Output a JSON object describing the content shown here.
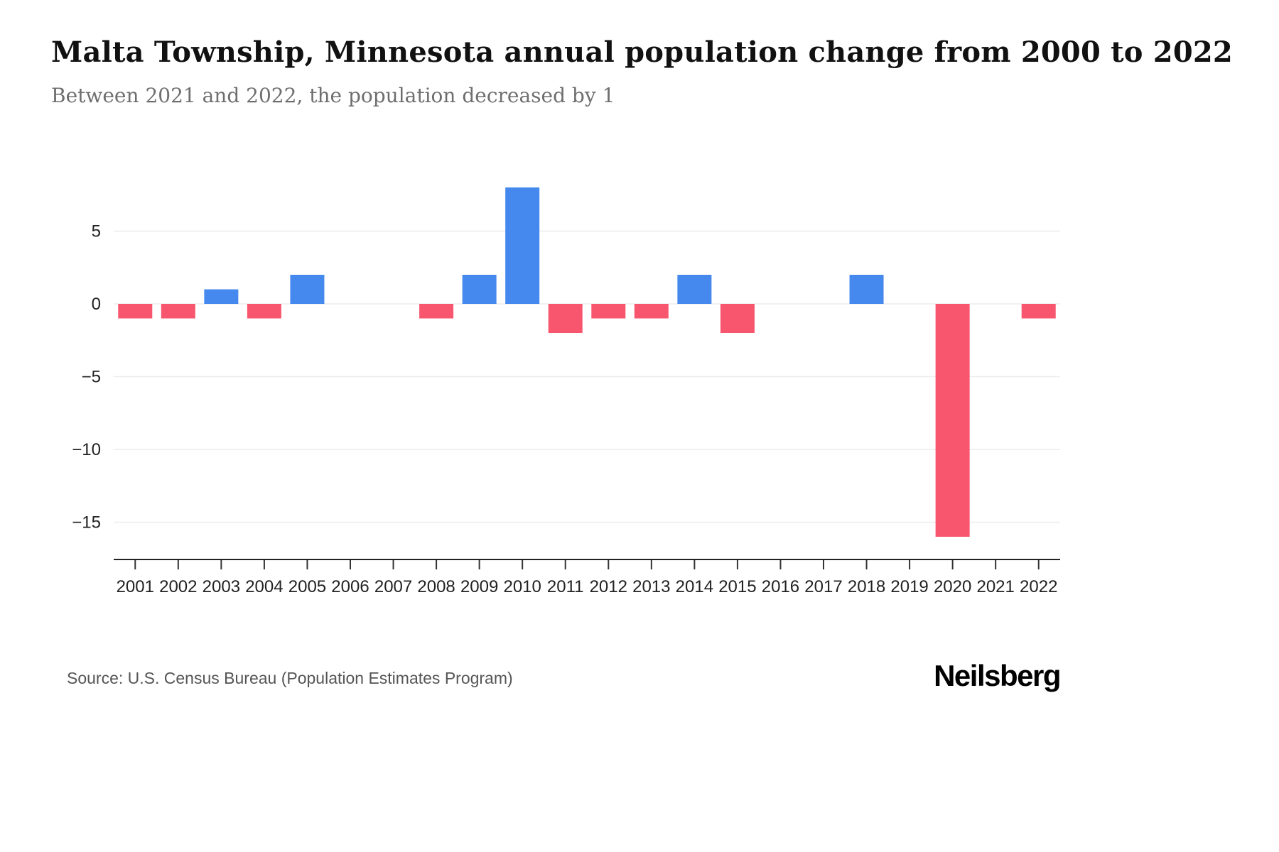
{
  "header": {
    "title": "Malta Township, Minnesota annual population change from 2000 to 2022",
    "subtitle": "Between 2021 and 2022, the population decreased by 1"
  },
  "footer": {
    "source": "Source: U.S. Census Bureau (Population Estimates Program)",
    "brand": "Neilsberg"
  },
  "chart_data": {
    "type": "bar",
    "title": "Malta Township, Minnesota annual population change from 2000 to 2022",
    "xlabel": "",
    "ylabel": "",
    "categories": [
      "2001",
      "2002",
      "2003",
      "2004",
      "2005",
      "2006",
      "2007",
      "2008",
      "2009",
      "2010",
      "2011",
      "2012",
      "2013",
      "2014",
      "2015",
      "2016",
      "2017",
      "2018",
      "2019",
      "2020",
      "2021",
      "2022"
    ],
    "values": [
      -1,
      -1,
      1,
      -1,
      2,
      0,
      0,
      -1,
      2,
      8,
      -2,
      -1,
      -1,
      2,
      -2,
      0,
      0,
      2,
      0,
      -16,
      0,
      -1
    ],
    "yticks": [
      5,
      0,
      -5,
      -10,
      -15
    ],
    "ylim": [
      -17,
      9
    ],
    "grid": true,
    "legend": "none",
    "positive_color": "#4589ee",
    "negative_color": "#f8566e",
    "grid_color": "#ececec",
    "axis_color": "#222222",
    "tick_label_color": "#222222"
  }
}
